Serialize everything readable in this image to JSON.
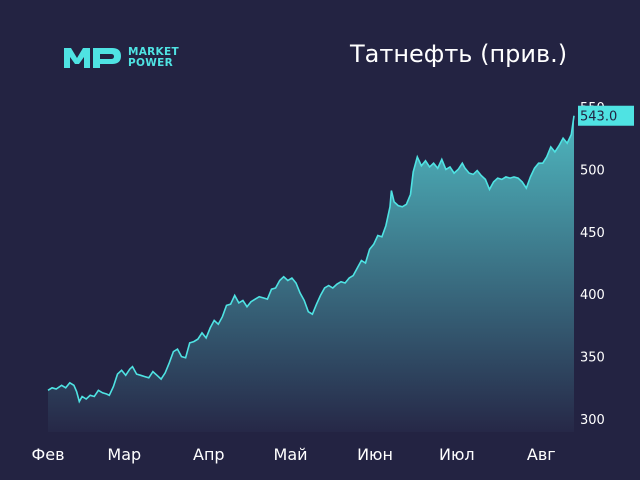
{
  "header": {
    "title": "Татнефть (прив.)",
    "logo": {
      "line1": "MARKET",
      "line2": "POWER",
      "mark": "MP"
    }
  },
  "colors": {
    "background": "#232342",
    "line": "#4fe3e3",
    "fill_top": "#4fb8c0",
    "fill_bottom": "#262847",
    "label_bg": "#4fe3e3",
    "label_text": "#232342"
  },
  "chart_data": {
    "type": "area",
    "title": "Татнефть (прив.)",
    "xlabel": "",
    "ylabel": "",
    "ylim": [
      290,
      552
    ],
    "y_ticks": [
      300,
      350,
      400,
      450,
      500,
      550
    ],
    "x_ticks": [
      "Фев",
      "Мар",
      "Апр",
      "Май",
      "Июн",
      "Июл",
      "Авг"
    ],
    "last_value_label": "543.0",
    "grid": false,
    "legend": "none",
    "series": [
      {
        "points": [
          [
            0,
            323
          ],
          [
            1.5,
            325
          ],
          [
            3,
            324
          ],
          [
            5,
            327
          ],
          [
            6.5,
            325
          ],
          [
            8,
            329
          ],
          [
            9.5,
            327
          ],
          [
            10.5,
            322
          ],
          [
            11.5,
            314
          ],
          [
            12.5,
            318
          ],
          [
            14,
            316
          ],
          [
            15.5,
            319
          ],
          [
            17,
            318
          ],
          [
            18.5,
            323
          ],
          [
            20,
            321
          ],
          [
            21.5,
            320
          ],
          [
            22.5,
            319
          ],
          [
            24,
            326
          ],
          [
            25.5,
            336
          ],
          [
            27,
            339
          ],
          [
            28.5,
            335
          ],
          [
            30,
            340
          ],
          [
            31,
            342
          ],
          [
            32.5,
            336
          ],
          [
            34,
            335
          ],
          [
            35.5,
            334
          ],
          [
            37,
            333
          ],
          [
            38.5,
            338
          ],
          [
            40,
            335
          ],
          [
            41.5,
            332
          ],
          [
            43,
            337
          ],
          [
            44.5,
            345
          ],
          [
            46,
            354
          ],
          [
            47.5,
            356
          ],
          [
            49,
            350
          ],
          [
            50.5,
            349
          ],
          [
            52,
            361
          ],
          [
            53.5,
            362
          ],
          [
            55,
            364
          ],
          [
            56.5,
            369
          ],
          [
            58,
            365
          ],
          [
            59.5,
            373
          ],
          [
            61,
            379
          ],
          [
            62.5,
            376
          ],
          [
            64,
            382
          ],
          [
            65.5,
            391
          ],
          [
            67,
            392
          ],
          [
            68.5,
            399
          ],
          [
            70,
            393
          ],
          [
            71.5,
            395
          ],
          [
            73,
            390
          ],
          [
            74.5,
            394
          ],
          [
            76,
            396
          ],
          [
            77.5,
            398
          ],
          [
            79,
            397
          ],
          [
            80.5,
            396
          ],
          [
            82,
            404
          ],
          [
            83.5,
            405
          ],
          [
            85,
            411
          ],
          [
            86.5,
            414
          ],
          [
            88,
            411
          ],
          [
            89.5,
            413
          ],
          [
            91,
            409
          ],
          [
            92.5,
            401
          ],
          [
            94,
            395
          ],
          [
            95.5,
            386
          ],
          [
            97,
            384
          ],
          [
            98.5,
            392
          ],
          [
            100,
            399
          ],
          [
            101.5,
            405
          ],
          [
            103,
            407
          ],
          [
            104.5,
            405
          ],
          [
            106,
            408
          ],
          [
            107.5,
            410
          ],
          [
            109,
            409
          ],
          [
            110.5,
            413
          ],
          [
            112,
            415
          ],
          [
            113.5,
            421
          ],
          [
            115,
            427
          ],
          [
            116.5,
            425
          ],
          [
            118,
            436
          ],
          [
            119.5,
            440
          ],
          [
            121,
            447
          ],
          [
            122.5,
            446
          ],
          [
            124,
            455
          ],
          [
            125.5,
            470
          ],
          [
            126,
            483
          ],
          [
            127,
            474
          ],
          [
            128.5,
            471
          ],
          [
            130,
            470
          ],
          [
            131.5,
            472
          ],
          [
            133,
            480
          ],
          [
            134,
            498
          ],
          [
            135.5,
            510
          ],
          [
            137,
            503
          ],
          [
            138.5,
            507
          ],
          [
            140,
            502
          ],
          [
            141.5,
            505
          ],
          [
            143,
            501
          ],
          [
            144.5,
            508
          ],
          [
            146,
            500
          ],
          [
            147.5,
            502
          ],
          [
            149,
            497
          ],
          [
            150.5,
            500
          ],
          [
            152,
            505
          ],
          [
            153,
            501
          ],
          [
            154.5,
            497
          ],
          [
            156,
            496
          ],
          [
            157.5,
            499
          ],
          [
            159,
            495
          ],
          [
            160.5,
            492
          ],
          [
            162,
            484
          ],
          [
            163.5,
            490
          ],
          [
            165,
            493
          ],
          [
            166.5,
            492
          ],
          [
            168,
            494
          ],
          [
            169.5,
            493
          ],
          [
            171,
            494
          ],
          [
            172.5,
            493
          ],
          [
            174,
            490
          ],
          [
            175.5,
            485
          ],
          [
            177,
            494
          ],
          [
            178.5,
            501
          ],
          [
            180,
            505
          ],
          [
            181.5,
            505
          ],
          [
            183,
            510
          ],
          [
            184.5,
            518
          ],
          [
            186,
            514
          ],
          [
            187.5,
            519
          ],
          [
            189,
            525
          ],
          [
            190.5,
            521
          ],
          [
            192,
            528
          ],
          [
            193,
            543
          ]
        ],
        "month_starts": [
          0,
          28,
          59,
          89,
          120,
          150,
          181
        ]
      }
    ]
  }
}
